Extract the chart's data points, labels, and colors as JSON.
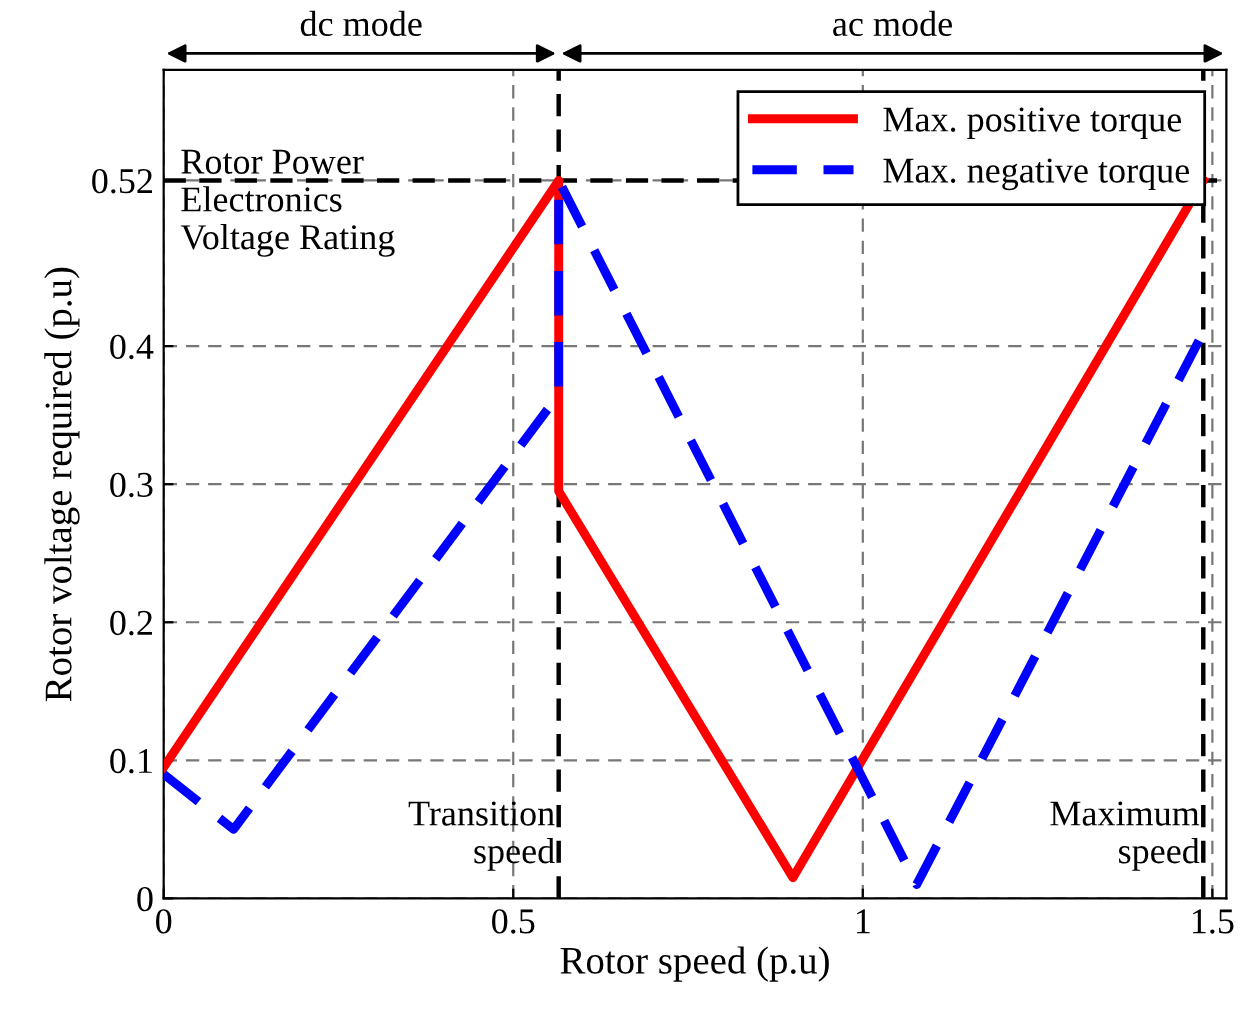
{
  "chart_data": {
    "type": "line",
    "xlabel": "Rotor speed (p.u)",
    "ylabel": "Rotor voltage required (p.u)",
    "xlim": [
      0,
      1.52
    ],
    "ylim": [
      0,
      0.6
    ],
    "xticks": [
      0,
      0.5,
      1,
      1.5
    ],
    "yticks": [
      0,
      0.1,
      0.2,
      0.3,
      0.4,
      0.52
    ],
    "grid": true,
    "legend": "top right",
    "series": [
      {
        "name": "Max. positive torque",
        "color": "#ff0000",
        "line_style": "solid",
        "x": [
          0,
          0.565,
          0.565,
          0.9,
          1.487
        ],
        "values": [
          0.095,
          0.52,
          0.295,
          0.015,
          0.52
        ]
      },
      {
        "name": "Max. negative torque",
        "color": "#0000ff",
        "line_style": "dashed",
        "x": [
          0,
          0.1,
          0.565,
          0.565,
          1.077,
          1.487
        ],
        "values": [
          0.09,
          0.05,
          0.365,
          0.52,
          0.01,
          0.41
        ]
      }
    ],
    "ref_lines": [
      {
        "axis": "y",
        "value": 0.52,
        "label": "Rotor Power\nElectronics\nVoltage Rating",
        "color": "#000000",
        "line_style": "dashed"
      },
      {
        "axis": "x",
        "value": 0.565,
        "label": "Transition\nspeed",
        "color": "#000000",
        "line_style": "dashed"
      },
      {
        "axis": "x",
        "value": 1.487,
        "label": "Maximum\nspeed",
        "color": "#000000",
        "line_style": "dashed"
      }
    ],
    "annotations": [
      "dc mode",
      "ac mode"
    ]
  }
}
